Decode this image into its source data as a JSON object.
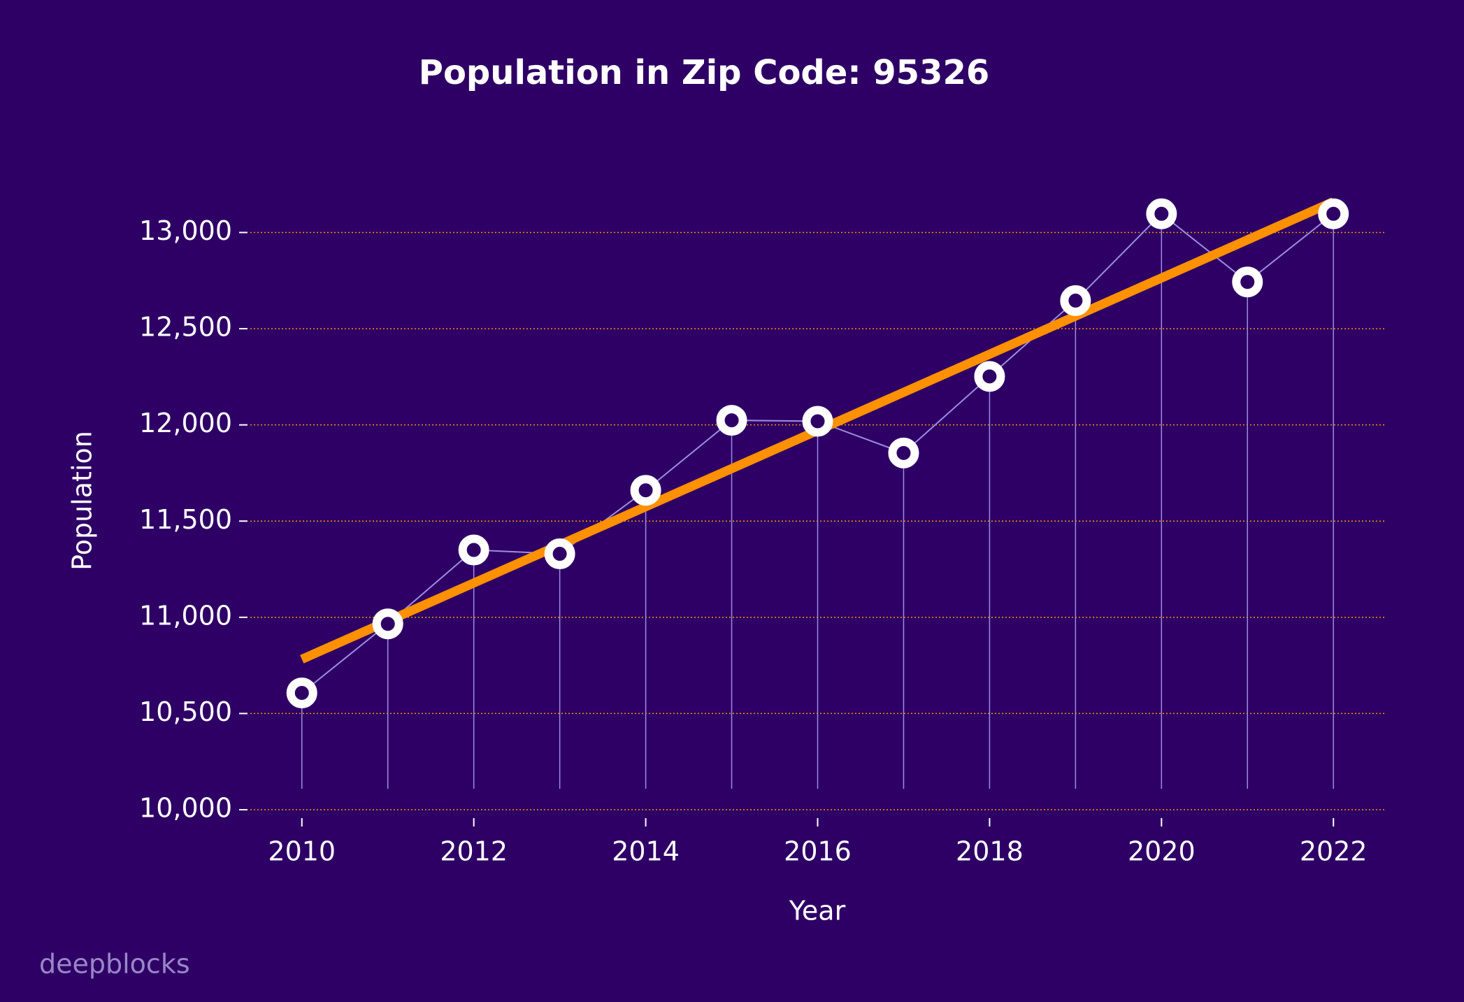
{
  "chart_data": {
    "type": "line",
    "title": "Population in Zip Code: 95326",
    "xlabel": "Year",
    "ylabel": "Population",
    "watermark": "deepblocks",
    "x": [
      2010,
      2011,
      2012,
      2013,
      2014,
      2015,
      2016,
      2017,
      2018,
      2019,
      2020,
      2021,
      2022
    ],
    "values": [
      10607,
      10966,
      11350,
      11330,
      11660,
      12024,
      12019,
      11854,
      12252,
      12646,
      13097,
      12743,
      13097
    ],
    "color": "#9d8ee0",
    "marker_color": "#ffffff",
    "trend": {
      "x": [
        2010,
        2022
      ],
      "values": [
        10782,
        13160
      ],
      "color": "#ff9000"
    },
    "xlim": [
      2009.4,
      2022.6
    ],
    "ylim": [
      10000,
      13000
    ],
    "xticks": [
      2010,
      2012,
      2014,
      2016,
      2018,
      2020,
      2022
    ],
    "yticks": [
      {
        "value": 10000,
        "label": "10,000"
      },
      {
        "value": 10500,
        "label": "10,500"
      },
      {
        "value": 11000,
        "label": "11,000"
      },
      {
        "value": 11500,
        "label": "11,500"
      },
      {
        "value": 12000,
        "label": "12,000"
      },
      {
        "value": 12500,
        "label": "12,500"
      },
      {
        "value": 13000,
        "label": "13,000"
      }
    ],
    "grid": true,
    "grid_color": "#ff9000",
    "background": "#2e0066"
  }
}
